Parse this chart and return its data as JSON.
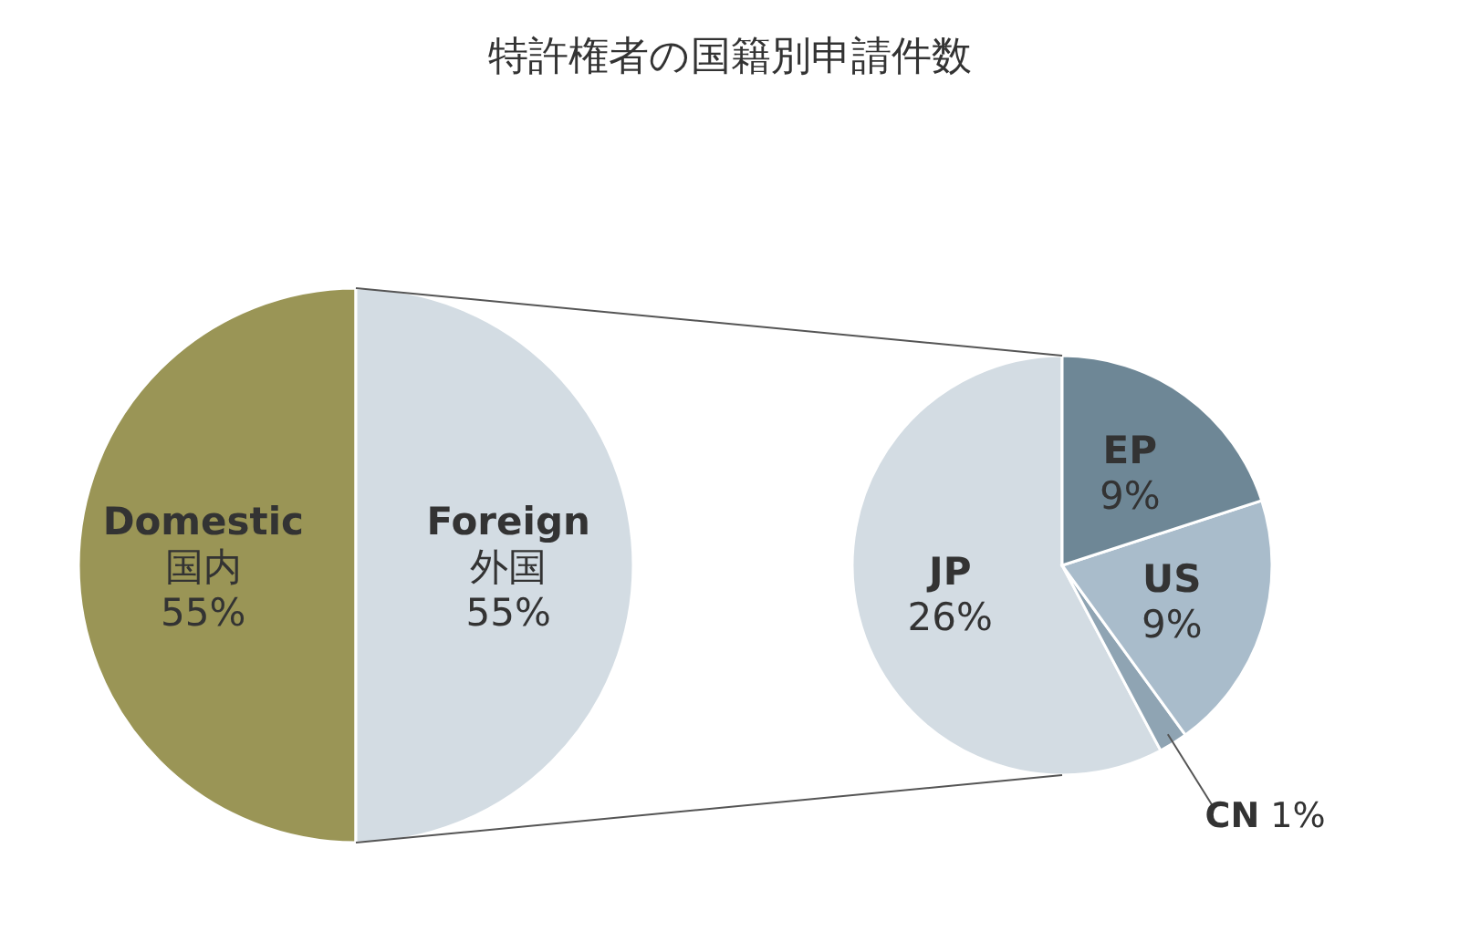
{
  "chart_data": [
    {
      "type": "pie",
      "title": "特許権者の国籍別申請件数",
      "categories": [
        "Domestic\n国内",
        "Foreign\n外国"
      ],
      "values": [
        55,
        55
      ],
      "value_labels": [
        "55%",
        "55%"
      ],
      "colors": [
        "#9a9556",
        "#d3dce3"
      ]
    },
    {
      "type": "pie",
      "categories": [
        "JP",
        "CN",
        "US",
        "EP"
      ],
      "values": [
        26,
        1,
        9,
        9
      ],
      "value_labels": [
        "26%",
        "1%",
        "9%",
        "9%"
      ],
      "colors": [
        "#d3dce3",
        "#8fa4b3",
        "#a9bccb",
        "#6e8796"
      ]
    }
  ]
}
